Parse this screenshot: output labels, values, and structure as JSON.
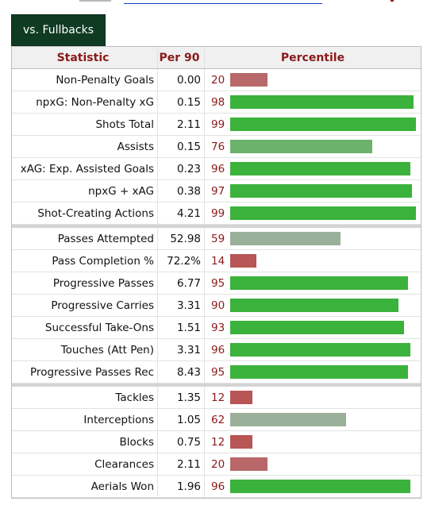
{
  "tab": {
    "label": "vs. Fullbacks"
  },
  "columns": {
    "statistic": "Statistic",
    "per90": "Per 90",
    "percentile": "Percentile"
  },
  "colors": {
    "elite": "#3bb23b",
    "good": "#6cb26c",
    "average": "#9bb09b",
    "poor": "#b86868",
    "low": "#b85555"
  },
  "groups": [
    [
      {
        "stat": "Non-Penalty Goals",
        "per90": "0.00",
        "pct": "20"
      },
      {
        "stat": "npxG: Non-Penalty xG",
        "per90": "0.15",
        "pct": "98"
      },
      {
        "stat": "Shots Total",
        "per90": "2.11",
        "pct": "99"
      },
      {
        "stat": "Assists",
        "per90": "0.15",
        "pct": "76"
      },
      {
        "stat": "xAG: Exp. Assisted Goals",
        "per90": "0.23",
        "pct": "96"
      },
      {
        "stat": "npxG + xAG",
        "per90": "0.38",
        "pct": "97"
      },
      {
        "stat": "Shot-Creating Actions",
        "per90": "4.21",
        "pct": "99"
      }
    ],
    [
      {
        "stat": "Passes Attempted",
        "per90": "52.98",
        "pct": "59"
      },
      {
        "stat": "Pass Completion %",
        "per90": "72.2%",
        "pct": "14"
      },
      {
        "stat": "Progressive Passes",
        "per90": "6.77",
        "pct": "95"
      },
      {
        "stat": "Progressive Carries",
        "per90": "3.31",
        "pct": "90"
      },
      {
        "stat": "Successful Take-Ons",
        "per90": "1.51",
        "pct": "93"
      },
      {
        "stat": "Touches (Att Pen)",
        "per90": "3.31",
        "pct": "96"
      },
      {
        "stat": "Progressive Passes Rec",
        "per90": "8.43",
        "pct": "95"
      }
    ],
    [
      {
        "stat": "Tackles",
        "per90": "1.35",
        "pct": "12"
      },
      {
        "stat": "Interceptions",
        "per90": "1.05",
        "pct": "62"
      },
      {
        "stat": "Blocks",
        "per90": "0.75",
        "pct": "12"
      },
      {
        "stat": "Clearances",
        "per90": "2.11",
        "pct": "20"
      },
      {
        "stat": "Aerials Won",
        "per90": "1.96",
        "pct": "96"
      }
    ]
  ]
}
